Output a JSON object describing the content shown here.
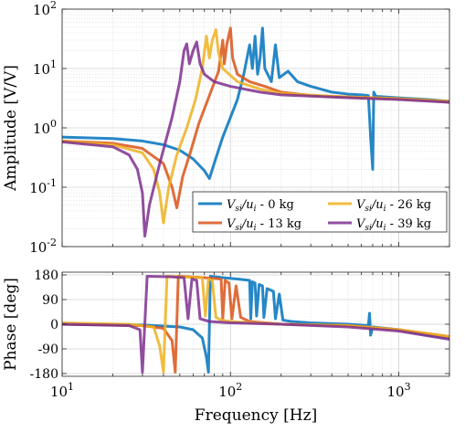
{
  "chart_data": [
    {
      "type": "line",
      "panel": "amplitude",
      "ylabel": "Amplitude [V/V]",
      "xscale": "log",
      "yscale": "log",
      "xlim": [
        10,
        2000
      ],
      "ylim": [
        0.01,
        100
      ],
      "x_ticks": [
        10,
        100,
        1000
      ],
      "y_ticks": [
        0.01,
        0.1,
        1,
        10,
        100
      ],
      "y_tick_labels": [
        {
          "base": "10",
          "exp": "-2"
        },
        {
          "base": "10",
          "exp": "-1"
        },
        {
          "base": "10",
          "exp": "0"
        },
        {
          "base": "10",
          "exp": "1"
        },
        {
          "base": "10",
          "exp": "2"
        }
      ],
      "grid": true,
      "legend": {
        "placement": "bottom-right",
        "columns": 2,
        "entries": [
          {
            "label_lhs": "V",
            "lhs_sub": "si",
            "label_mid": "/u",
            "mid_sub": "i",
            "label_tail": " - 0 kg",
            "color": "#0072BD"
          },
          {
            "label_lhs": "V",
            "lhs_sub": "si",
            "label_mid": "/u",
            "mid_sub": "i",
            "label_tail": " - 26 kg",
            "color": "#EDB120"
          },
          {
            "label_lhs": "V",
            "lhs_sub": "si",
            "label_mid": "/u",
            "mid_sub": "i",
            "label_tail": " - 13 kg",
            "color": "#D95319"
          },
          {
            "label_lhs": "V",
            "lhs_sub": "si",
            "label_mid": "/u",
            "mid_sub": "i",
            "label_tail": " - 39 kg",
            "color": "#7E2F8E"
          }
        ]
      },
      "series": [
        {
          "mass": "0 kg",
          "color": "#0072BD",
          "points": [
            [
              10,
              0.7
            ],
            [
              20,
              0.66
            ],
            [
              30,
              0.6
            ],
            [
              40,
              0.52
            ],
            [
              50,
              0.42
            ],
            [
              60,
              0.3
            ],
            [
              70,
              0.19
            ],
            [
              75,
              0.14
            ],
            [
              80,
              0.25
            ],
            [
              90,
              0.7
            ],
            [
              100,
              1.5
            ],
            [
              110,
              3.0
            ],
            [
              120,
              8.0
            ],
            [
              130,
              25
            ],
            [
              135,
              10
            ],
            [
              140,
              35
            ],
            [
              145,
              8
            ],
            [
              150,
              15
            ],
            [
              155,
              48
            ],
            [
              160,
              10
            ],
            [
              175,
              6
            ],
            [
              185,
              25
            ],
            [
              195,
              7
            ],
            [
              220,
              9
            ],
            [
              250,
              6
            ],
            [
              300,
              5
            ],
            [
              400,
              4
            ],
            [
              500,
              3.7
            ],
            [
              600,
              3.6
            ],
            [
              660,
              3.5
            ],
            [
              680,
              0.7
            ],
            [
              700,
              0.2
            ],
            [
              710,
              4
            ],
            [
              730,
              3.4
            ],
            [
              1000,
              3.2
            ],
            [
              1500,
              3.0
            ],
            [
              2000,
              2.8
            ]
          ]
        },
        {
          "mass": "13 kg",
          "color": "#D95319",
          "points": [
            [
              10,
              0.6
            ],
            [
              20,
              0.55
            ],
            [
              30,
              0.45
            ],
            [
              40,
              0.25
            ],
            [
              45,
              0.1
            ],
            [
              48,
              0.045
            ],
            [
              52,
              0.15
            ],
            [
              58,
              0.4
            ],
            [
              65,
              1.2
            ],
            [
              75,
              3.5
            ],
            [
              85,
              9
            ],
            [
              90,
              30
            ],
            [
              92,
              12
            ],
            [
              95,
              25
            ],
            [
              100,
              48
            ],
            [
              103,
              15
            ],
            [
              110,
              8
            ],
            [
              130,
              6
            ],
            [
              160,
              5
            ],
            [
              200,
              4
            ],
            [
              300,
              3.5
            ],
            [
              500,
              3.3
            ],
            [
              1000,
              3.1
            ],
            [
              1500,
              2.9
            ],
            [
              2000,
              2.7
            ]
          ]
        },
        {
          "mass": "26 kg",
          "color": "#EDB120",
          "points": [
            [
              10,
              0.6
            ],
            [
              20,
              0.52
            ],
            [
              30,
              0.38
            ],
            [
              35,
              0.2
            ],
            [
              38,
              0.08
            ],
            [
              40,
              0.025
            ],
            [
              43,
              0.1
            ],
            [
              48,
              0.35
            ],
            [
              55,
              1.0
            ],
            [
              62,
              3.0
            ],
            [
              68,
              10
            ],
            [
              72,
              35
            ],
            [
              75,
              15
            ],
            [
              78,
              30
            ],
            [
              82,
              45
            ],
            [
              85,
              18
            ],
            [
              90,
              10
            ],
            [
              110,
              6
            ],
            [
              150,
              4.5
            ],
            [
              200,
              3.8
            ],
            [
              400,
              3.4
            ],
            [
              1000,
              3.1
            ],
            [
              2000,
              2.8
            ]
          ]
        },
        {
          "mass": "39 kg",
          "color": "#7E2F8E",
          "points": [
            [
              10,
              0.58
            ],
            [
              20,
              0.48
            ],
            [
              25,
              0.35
            ],
            [
              28,
              0.2
            ],
            [
              30,
              0.08
            ],
            [
              31,
              0.015
            ],
            [
              33,
              0.05
            ],
            [
              38,
              0.25
            ],
            [
              45,
              1.5
            ],
            [
              50,
              6
            ],
            [
              53,
              20
            ],
            [
              55,
              26
            ],
            [
              57,
              12
            ],
            [
              60,
              20
            ],
            [
              63,
              28
            ],
            [
              66,
              12
            ],
            [
              70,
              8
            ],
            [
              80,
              6
            ],
            [
              100,
              5
            ],
            [
              150,
              4
            ],
            [
              200,
              3.6
            ],
            [
              400,
              3.3
            ],
            [
              1000,
              3.0
            ],
            [
              2000,
              2.7
            ]
          ]
        }
      ]
    },
    {
      "type": "line",
      "panel": "phase",
      "xlabel": "Frequency [Hz]",
      "ylabel": "Phase [deg]",
      "xscale": "log",
      "xlim": [
        10,
        2000
      ],
      "ylim": [
        -190,
        190
      ],
      "x_ticks": [
        10,
        100,
        1000
      ],
      "x_tick_labels": [
        {
          "base": "10",
          "exp": "1"
        },
        {
          "base": "10",
          "exp": "2"
        },
        {
          "base": "10",
          "exp": "3"
        }
      ],
      "y_ticks": [
        -180,
        -90,
        0,
        90,
        180
      ],
      "y_tick_labels": [
        "-180",
        "-90",
        "0",
        "90",
        "180"
      ],
      "grid": true,
      "series": [
        {
          "mass": "0 kg",
          "color": "#0072BD",
          "points": [
            [
              10,
              0
            ],
            [
              30,
              -3
            ],
            [
              50,
              -10
            ],
            [
              60,
              -20
            ],
            [
              68,
              -50
            ],
            [
              72,
              -120
            ],
            [
              74,
              -175
            ],
            [
              76,
              175
            ],
            [
              90,
              170
            ],
            [
              110,
              165
            ],
            [
              130,
              160
            ],
            [
              132,
              20
            ],
            [
              135,
              155
            ],
            [
              140,
              150
            ],
            [
              143,
              30
            ],
            [
              148,
              145
            ],
            [
              155,
              140
            ],
            [
              158,
              25
            ],
            [
              165,
              130
            ],
            [
              180,
              120
            ],
            [
              185,
              20
            ],
            [
              195,
              110
            ],
            [
              205,
              15
            ],
            [
              230,
              10
            ],
            [
              300,
              5
            ],
            [
              500,
              0
            ],
            [
              660,
              -5
            ],
            [
              670,
              40
            ],
            [
              680,
              -40
            ],
            [
              700,
              -10
            ],
            [
              1000,
              -20
            ],
            [
              1500,
              -40
            ],
            [
              2000,
              -50
            ]
          ]
        },
        {
          "mass": "13 kg",
          "color": "#D95319",
          "points": [
            [
              10,
              0
            ],
            [
              30,
              -5
            ],
            [
              40,
              -15
            ],
            [
              45,
              -60
            ],
            [
              47,
              -175
            ],
            [
              49,
              175
            ],
            [
              70,
              170
            ],
            [
              88,
              165
            ],
            [
              90,
              20
            ],
            [
              93,
              160
            ],
            [
              98,
              150
            ],
            [
              102,
              20
            ],
            [
              108,
              140
            ],
            [
              115,
              25
            ],
            [
              130,
              10
            ],
            [
              200,
              0
            ],
            [
              500,
              -5
            ],
            [
              1000,
              -20
            ],
            [
              2000,
              -45
            ]
          ]
        },
        {
          "mass": "26 kg",
          "color": "#EDB120",
          "points": [
            [
              10,
              5
            ],
            [
              25,
              0
            ],
            [
              35,
              -10
            ],
            [
              38,
              -80
            ],
            [
              40,
              -175
            ],
            [
              42,
              175
            ],
            [
              55,
              172
            ],
            [
              68,
              170
            ],
            [
              71,
              30
            ],
            [
              74,
              165
            ],
            [
              78,
              160
            ],
            [
              82,
              25
            ],
            [
              88,
              15
            ],
            [
              100,
              10
            ],
            [
              200,
              0
            ],
            [
              500,
              -5
            ],
            [
              1000,
              -20
            ],
            [
              2000,
              -45
            ]
          ]
        },
        {
          "mass": "39 kg",
          "color": "#7E2F8E",
          "points": [
            [
              10,
              0
            ],
            [
              25,
              -5
            ],
            [
              29,
              -20
            ],
            [
              30,
              -175
            ],
            [
              32,
              175
            ],
            [
              45,
              173
            ],
            [
              53,
              170
            ],
            [
              56,
              20
            ],
            [
              59,
              165
            ],
            [
              63,
              160
            ],
            [
              66,
              20
            ],
            [
              75,
              10
            ],
            [
              100,
              5
            ],
            [
              200,
              0
            ],
            [
              500,
              -10
            ],
            [
              1000,
              -25
            ],
            [
              2000,
              -55
            ]
          ]
        }
      ]
    }
  ]
}
